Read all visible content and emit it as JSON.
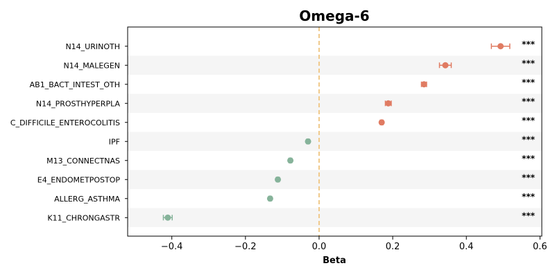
{
  "chart_data": {
    "type": "scatter",
    "title": "Omega-6",
    "xlabel": "Beta",
    "ylabel": "",
    "xlim": [
      -0.52,
      0.605
    ],
    "xticks": [
      -0.4,
      -0.2,
      0.0,
      0.2,
      0.4,
      0.6
    ],
    "xtick_labels": [
      "−0.4",
      "−0.2",
      "0.0",
      "0.2",
      "0.4",
      "0.6"
    ],
    "reference_line": 0.0,
    "grid": false,
    "alternating_row_shading": true,
    "colors": {
      "positive": "#e07b62",
      "negative": "#86b39a",
      "reference": "#f0c98a",
      "shade": "#f5f5f5"
    },
    "points": [
      {
        "label": "N14_URINOTH",
        "beta": 0.493,
        "ci": [
          0.468,
          0.518
        ],
        "sig": "***"
      },
      {
        "label": "N14_MALEGEN",
        "beta": 0.343,
        "ci": [
          0.327,
          0.359
        ],
        "sig": "***"
      },
      {
        "label": "AB1_BACT_INTEST_OTH",
        "beta": 0.285,
        "ci": [
          0.278,
          0.292
        ],
        "sig": "***"
      },
      {
        "label": "N14_PROSTHYPERPLA",
        "beta": 0.188,
        "ci": [
          0.18,
          0.196
        ],
        "sig": "***"
      },
      {
        "label": "C_DIFFICILE_ENTEROCOLITIS",
        "beta": 0.17,
        "ci": [
          0.166,
          0.174
        ],
        "sig": "***"
      },
      {
        "label": "IPF",
        "beta": -0.03,
        "ci": [
          -0.034,
          -0.026
        ],
        "sig": "***"
      },
      {
        "label": "M13_CONNECTNAS",
        "beta": -0.078,
        "ci": [
          -0.082,
          -0.074
        ],
        "sig": "***"
      },
      {
        "label": "E4_ENDOMETPOSTOP",
        "beta": -0.112,
        "ci": [
          -0.116,
          -0.108
        ],
        "sig": "***"
      },
      {
        "label": "ALLERG_ASTHMA",
        "beta": -0.133,
        "ci": [
          -0.137,
          -0.129
        ],
        "sig": "***"
      },
      {
        "label": "K11_CHRONGASTR",
        "beta": -0.411,
        "ci": [
          -0.423,
          -0.399
        ],
        "sig": "***"
      }
    ]
  }
}
